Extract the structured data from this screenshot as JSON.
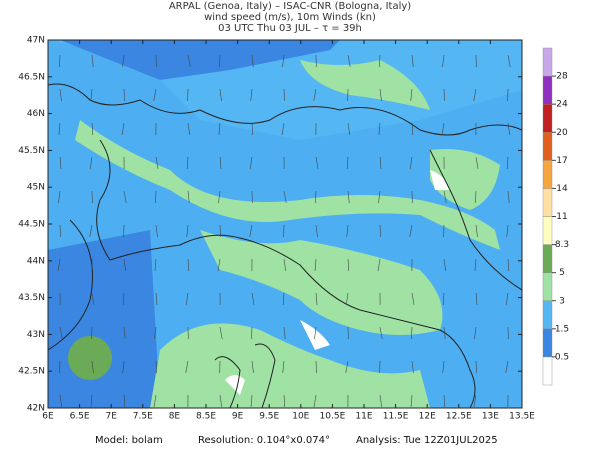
{
  "header": {
    "line1": "ARPAL (Genoa, Italy)  –  ISAC-CNR (Bologna, Italy)",
    "line2": "wind speed (m/s), 10m Winds (kn)",
    "line3": "03 UTC Thu 03 JUL  –  τ = 39h"
  },
  "map": {
    "lon_labels": [
      "6E",
      "6.5E",
      "7E",
      "7.5E",
      "8E",
      "8.5E",
      "9E",
      "9.5E",
      "10E",
      "10.5E",
      "11E",
      "11.5E",
      "12E",
      "12.5E",
      "13E",
      "13.5E"
    ],
    "lat_labels": [
      "42N",
      "42.5N",
      "43N",
      "43.5N",
      "44N",
      "44.5N",
      "45N",
      "45.5N",
      "46N",
      "46.5N",
      "47N"
    ]
  },
  "colorbar": {
    "levels": [
      "0.5",
      "1.5",
      "3",
      "5",
      "8.3",
      "11",
      "14",
      "17",
      "20",
      "24",
      "28"
    ]
  },
  "footer": {
    "model": "Model: bolam",
    "resolution": "Resolution: 0.104°x0.074°",
    "analysis": "Analysis: Tue 12Z01JUL2025"
  }
}
